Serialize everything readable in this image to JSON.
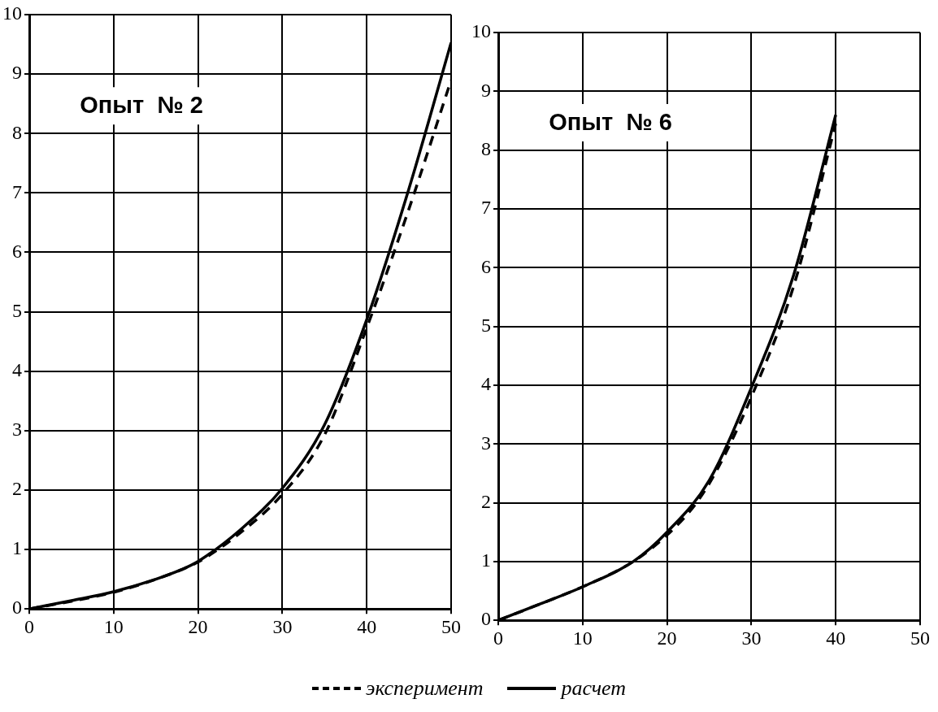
{
  "chart_data": [
    {
      "type": "line",
      "annotations": [
        "Опыт  № 2"
      ],
      "xlim": [
        0,
        50
      ],
      "xticks": [
        0,
        10,
        20,
        30,
        40,
        50
      ],
      "ylim": [
        0,
        10
      ],
      "yticks": [
        0,
        1,
        2,
        3,
        4,
        5,
        6,
        7,
        8,
        9,
        10
      ],
      "grid": true,
      "legend": "bottom",
      "marker": "none",
      "series": [
        {
          "name": "эксперимент",
          "color": "#000000",
          "line_style": "dashed",
          "x": [
            0,
            5,
            10,
            15,
            20,
            25,
            30,
            35,
            40,
            45,
            50
          ],
          "values": [
            0,
            0.13,
            0.28,
            0.5,
            0.79,
            1.28,
            1.93,
            2.93,
            4.73,
            6.73,
            8.9
          ]
        },
        {
          "name": "расчет",
          "color": "#000000",
          "line_style": "solid",
          "x": [
            0,
            5,
            10,
            15,
            18,
            20,
            25,
            30,
            35,
            40,
            45,
            50
          ],
          "values": [
            0,
            0.14,
            0.29,
            0.5,
            0.66,
            0.8,
            1.33,
            2.03,
            3.1,
            4.87,
            7.07,
            9.53
          ]
        }
      ]
    },
    {
      "type": "line",
      "annotations": [
        "Опыт  № 6"
      ],
      "xlim": [
        0,
        50
      ],
      "xticks": [
        0,
        10,
        20,
        30,
        40,
        50
      ],
      "ylim": [
        0,
        10
      ],
      "yticks": [
        0,
        1,
        2,
        3,
        4,
        5,
        6,
        7,
        8,
        9,
        10
      ],
      "grid": true,
      "marker": "none",
      "series": [
        {
          "color": "#000000",
          "line_style": "dashed",
          "x": [
            0,
            5,
            10,
            16,
            20,
            23.5,
            26,
            30,
            35,
            40
          ],
          "values": [
            0,
            0.28,
            0.57,
            1.0,
            1.45,
            2.0,
            2.58,
            3.8,
            5.68,
            8.45
          ]
        },
        {
          "color": "#000000",
          "line_style": "solid",
          "x": [
            0,
            5,
            10,
            16,
            20,
            25,
            30,
            35,
            40
          ],
          "values": [
            0,
            0.28,
            0.57,
            1.0,
            1.5,
            2.38,
            3.96,
            5.87,
            8.6
          ]
        }
      ]
    }
  ]
}
